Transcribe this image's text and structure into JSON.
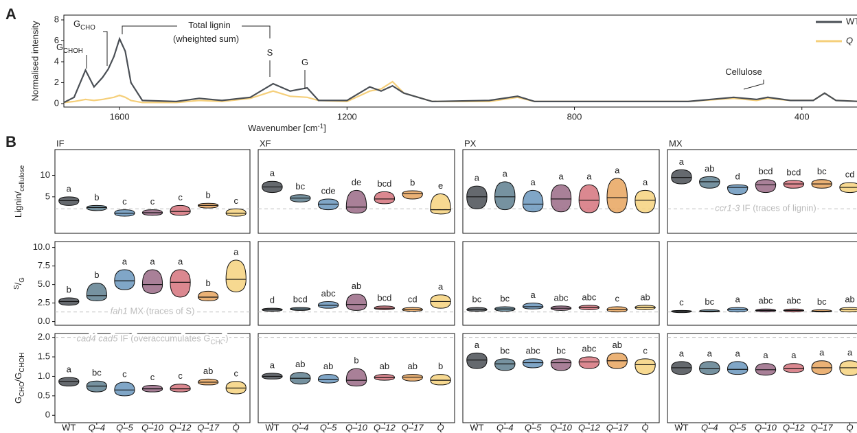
{
  "chart_data": [
    {
      "type": "line",
      "panel": "A",
      "ylabel": "Normalised intensity",
      "xlabel": [
        {
          "text": "Wavenumber [cm"
        },
        {
          "text": "-1",
          "style": "sup"
        },
        {
          "text": "]"
        }
      ],
      "xlim": [
        1698,
        297
      ],
      "xticks": [
        1600,
        1200,
        800,
        400
      ],
      "ylim": [
        -0.33,
        8.46
      ],
      "yticks": [
        0,
        2,
        4,
        6,
        8
      ],
      "x": [
        1698,
        1680,
        1660,
        1645,
        1630,
        1620,
        1610,
        1600,
        1590,
        1580,
        1560,
        1500,
        1460,
        1420,
        1370,
        1330,
        1300,
        1270,
        1250,
        1200,
        1160,
        1140,
        1120,
        1100,
        1050,
        950,
        900,
        870,
        800,
        700,
        600,
        520,
        480,
        460,
        420,
        380,
        360,
        340,
        297
      ],
      "series": [
        {
          "name": "WT",
          "color": "#4a4f55",
          "values": [
            0.1,
            0.6,
            3.2,
            1.6,
            2.5,
            3.3,
            4.5,
            6.2,
            5.0,
            2.0,
            0.3,
            0.2,
            0.5,
            0.3,
            0.6,
            1.9,
            1.2,
            1.5,
            0.3,
            0.3,
            1.6,
            1.2,
            1.7,
            1.0,
            0.2,
            0.3,
            0.7,
            0.2,
            0.2,
            0.2,
            0.2,
            0.6,
            0.4,
            0.6,
            0.3,
            0.3,
            1.0,
            0.3,
            0.2
          ]
        },
        {
          "name": "Q",
          "color": "#f5cf7a",
          "values": [
            0.1,
            0.2,
            0.4,
            0.3,
            0.4,
            0.5,
            0.6,
            0.8,
            0.6,
            0.3,
            0.1,
            0.1,
            0.3,
            0.2,
            0.5,
            1.2,
            0.7,
            0.6,
            0.3,
            0.2,
            1.2,
            1.4,
            2.1,
            1.0,
            0.2,
            0.2,
            0.6,
            0.2,
            0.2,
            0.2,
            0.2,
            0.5,
            0.3,
            0.5,
            0.3,
            0.3,
            1.0,
            0.3,
            0.2
          ]
        }
      ],
      "annotations": [
        [
          {
            "text": "G"
          },
          {
            "text": "CHOH",
            "style": "sub"
          }
        ],
        [
          {
            "text": "G"
          },
          {
            "text": "CHO",
            "style": "sub"
          }
        ],
        [
          {
            "text": "Total lignin"
          }
        ],
        [
          {
            "text": "(wheighted sum)"
          }
        ],
        [
          {
            "text": "S"
          }
        ],
        [
          {
            "text": "G"
          }
        ],
        [
          {
            "text": "Cellulose"
          }
        ]
      ]
    },
    {
      "type": "violin",
      "panel": "B",
      "columns": [
        "IF",
        "XF",
        "PX",
        "MX"
      ],
      "categories": [
        "WT",
        "Q–4",
        "Q–5",
        "Q–10",
        "Q–12",
        "Q–17",
        "Q"
      ],
      "colors": [
        "#4a4f55",
        "#5e7f8f",
        "#6a97bd",
        "#9a6a86",
        "#d5737c",
        "#e8a45e",
        "#f6d27e"
      ],
      "rows": [
        {
          "ylabel": [
            {
              "text": "Lignin"
            },
            {
              "text": "/"
            },
            {
              "text": "cellulose",
              "style": "sub"
            }
          ],
          "ylim": [
            -3.5,
            16
          ],
          "yticks": [
            5,
            10
          ],
          "ref": 2.2,
          "ref_label": [
            {
              "text": "ccr1-3",
              "style": "italic"
            },
            {
              "text": " IF (traces of lignin)"
            }
          ],
          "panels": [
            {
              "median": [
                4.1,
                2.5,
                1.2,
                1.3,
                1.6,
                3.0,
                1.2
              ],
              "min": [
                3.0,
                1.8,
                0.5,
                0.7,
                0.7,
                2.4,
                0.5
              ],
              "max": [
                5.0,
                3.0,
                2.0,
                2.0,
                3.0,
                3.5,
                2.2
              ],
              "letters": [
                "a",
                "b",
                "c",
                "c",
                "c",
                "b",
                "c"
              ]
            },
            {
              "median": [
                7.3,
                4.7,
                3.3,
                2.6,
                4.5,
                5.7,
                2.0
              ],
              "min": [
                6.0,
                3.8,
                2.0,
                1.2,
                3.4,
                4.5,
                1.0
              ],
              "max": [
                8.6,
                5.5,
                4.5,
                6.5,
                6.2,
                6.4,
                5.7
              ],
              "letters": [
                "a",
                "bc",
                "cde",
                "de",
                "bcd",
                "b",
                "e"
              ]
            },
            {
              "median": [
                5.0,
                5.0,
                3.3,
                4.5,
                4.2,
                4.8,
                4.2
              ],
              "min": [
                2.2,
                2.0,
                1.5,
                1.5,
                1.3,
                1.3,
                1.3
              ],
              "max": [
                7.5,
                8.5,
                6.5,
                7.8,
                7.8,
                9.3,
                6.5
              ],
              "letters": [
                "a",
                "a",
                "a",
                "a",
                "a",
                "a",
                "a"
              ]
            },
            {
              "median": [
                9.5,
                8.5,
                7.2,
                7.8,
                8.0,
                8.0,
                7.2
              ],
              "min": [
                8.0,
                7.0,
                5.5,
                6.0,
                7.0,
                7.0,
                6.0
              ],
              "max": [
                11.3,
                9.7,
                7.8,
                9.0,
                8.8,
                9.0,
                8.3
              ],
              "letters": [
                "a",
                "ab",
                "d",
                "bcd",
                "bcd",
                "bc",
                "cd"
              ]
            }
          ]
        },
        {
          "ylabel": [
            {
              "text": "S",
              "style": "sup"
            },
            {
              "text": "/"
            },
            {
              "text": "G",
              "style": "sub"
            }
          ],
          "ylim": [
            -0.5,
            10.8
          ],
          "yticks": [
            {
              "value": 0,
              "label": "0.0"
            },
            2.5,
            {
              "value": 5,
              "label": "5.0"
            },
            7.5,
            {
              "value": 10,
              "label": "10.0"
            }
          ],
          "ref": 1.3,
          "ref_label": [
            {
              "text": "fah1",
              "style": "italic"
            },
            {
              "text": " MX (traces of S)"
            }
          ],
          "panels": [
            {
              "median": [
                2.7,
                3.5,
                5.5,
                5.0,
                5.3,
                3.3,
                5.7
              ],
              "min": [
                2.2,
                2.8,
                4.3,
                3.8,
                3.3,
                2.8,
                4.0
              ],
              "max": [
                3.2,
                5.2,
                7.0,
                7.0,
                7.0,
                4.1,
                8.3
              ],
              "letters": [
                "b",
                "b",
                "a",
                "a",
                "a",
                "b",
                "a"
              ]
            },
            {
              "median": [
                1.6,
                1.7,
                2.2,
                2.3,
                1.8,
                1.6,
                2.7
              ],
              "min": [
                1.4,
                1.5,
                1.8,
                1.5,
                1.6,
                1.4,
                1.8
              ],
              "max": [
                1.8,
                1.9,
                2.7,
                3.7,
                2.1,
                1.9,
                3.6
              ],
              "letters": [
                "d",
                "bcd",
                "abc",
                "ab",
                "bcd",
                "cd",
                "a"
              ]
            },
            {
              "median": [
                1.6,
                1.7,
                2.0,
                1.8,
                1.9,
                1.6,
                1.9
              ],
              "min": [
                1.4,
                1.4,
                1.7,
                1.5,
                1.6,
                1.3,
                1.6
              ],
              "max": [
                1.9,
                2.0,
                2.5,
                2.1,
                2.2,
                2.0,
                2.2
              ],
              "letters": [
                "bc",
                "bc",
                "a",
                "abc",
                "abc",
                "c",
                "ab"
              ]
            },
            {
              "median": [
                1.4,
                1.4,
                1.6,
                1.5,
                1.5,
                1.4,
                1.6
              ],
              "min": [
                1.2,
                1.3,
                1.3,
                1.3,
                1.3,
                1.3,
                1.3
              ],
              "max": [
                1.5,
                1.6,
                1.9,
                1.7,
                1.7,
                1.6,
                1.9
              ],
              "letters": [
                "c",
                "bc",
                "a",
                "abc",
                "abc",
                "bc",
                "ab"
              ]
            }
          ]
        },
        {
          "ylabel": [
            {
              "text": "G"
            },
            {
              "text": "CHO",
              "style": "sub"
            },
            {
              "text": "/G"
            },
            {
              "text": "CHOH",
              "style": "sub"
            }
          ],
          "ylim": [
            -0.19,
            2.1
          ],
          "yticks": [
            0,
            0.5,
            {
              "value": 1,
              "label": "1.0"
            },
            1.5,
            {
              "value": 2,
              "label": "2.0"
            }
          ],
          "ref": 2.0,
          "ref_label": [
            {
              "text": "cad4 cad5",
              "style": "italic"
            },
            {
              "text": " IF (overaccumulates G"
            },
            {
              "text": "CHO",
              "style": "sub"
            },
            {
              "text": ")"
            }
          ],
          "panels": [
            {
              "median": [
                0.87,
                0.75,
                0.65,
                0.68,
                0.68,
                0.85,
                0.7
              ],
              "min": [
                0.75,
                0.6,
                0.5,
                0.6,
                0.6,
                0.78,
                0.55
              ],
              "max": [
                0.97,
                0.88,
                0.85,
                0.77,
                0.8,
                0.93,
                0.87
              ],
              "letters": [
                "a",
                "bc",
                "c",
                "c",
                "c",
                "ab",
                "c"
              ]
            },
            {
              "median": [
                1.0,
                0.95,
                0.92,
                0.9,
                0.97,
                0.98,
                0.9
              ],
              "min": [
                0.93,
                0.8,
                0.83,
                0.75,
                0.9,
                0.88,
                0.78
              ],
              "max": [
                1.08,
                1.1,
                1.05,
                1.2,
                1.05,
                1.05,
                1.05
              ],
              "letters": [
                "a",
                "ab",
                "ab",
                "b",
                "ab",
                "ab",
                "b"
              ]
            },
            {
              "median": [
                1.42,
                1.32,
                1.35,
                1.35,
                1.37,
                1.4,
                1.3
              ],
              "min": [
                1.2,
                1.15,
                1.22,
                1.15,
                1.2,
                1.2,
                1.05
              ],
              "max": [
                1.6,
                1.45,
                1.45,
                1.45,
                1.5,
                1.6,
                1.45
              ],
              "letters": [
                "a",
                "bc",
                "abc",
                "bc",
                "abc",
                "ab",
                "c"
              ]
            },
            {
              "median": [
                1.22,
                1.2,
                1.18,
                1.17,
                1.2,
                1.22,
                1.22
              ],
              "min": [
                1.05,
                1.05,
                1.05,
                1.03,
                1.1,
                1.05,
                1.02
              ],
              "max": [
                1.38,
                1.38,
                1.38,
                1.33,
                1.33,
                1.4,
                1.4
              ],
              "letters": [
                "a",
                "a",
                "a",
                "a",
                "a",
                "a",
                "a"
              ]
            }
          ]
        }
      ]
    }
  ]
}
